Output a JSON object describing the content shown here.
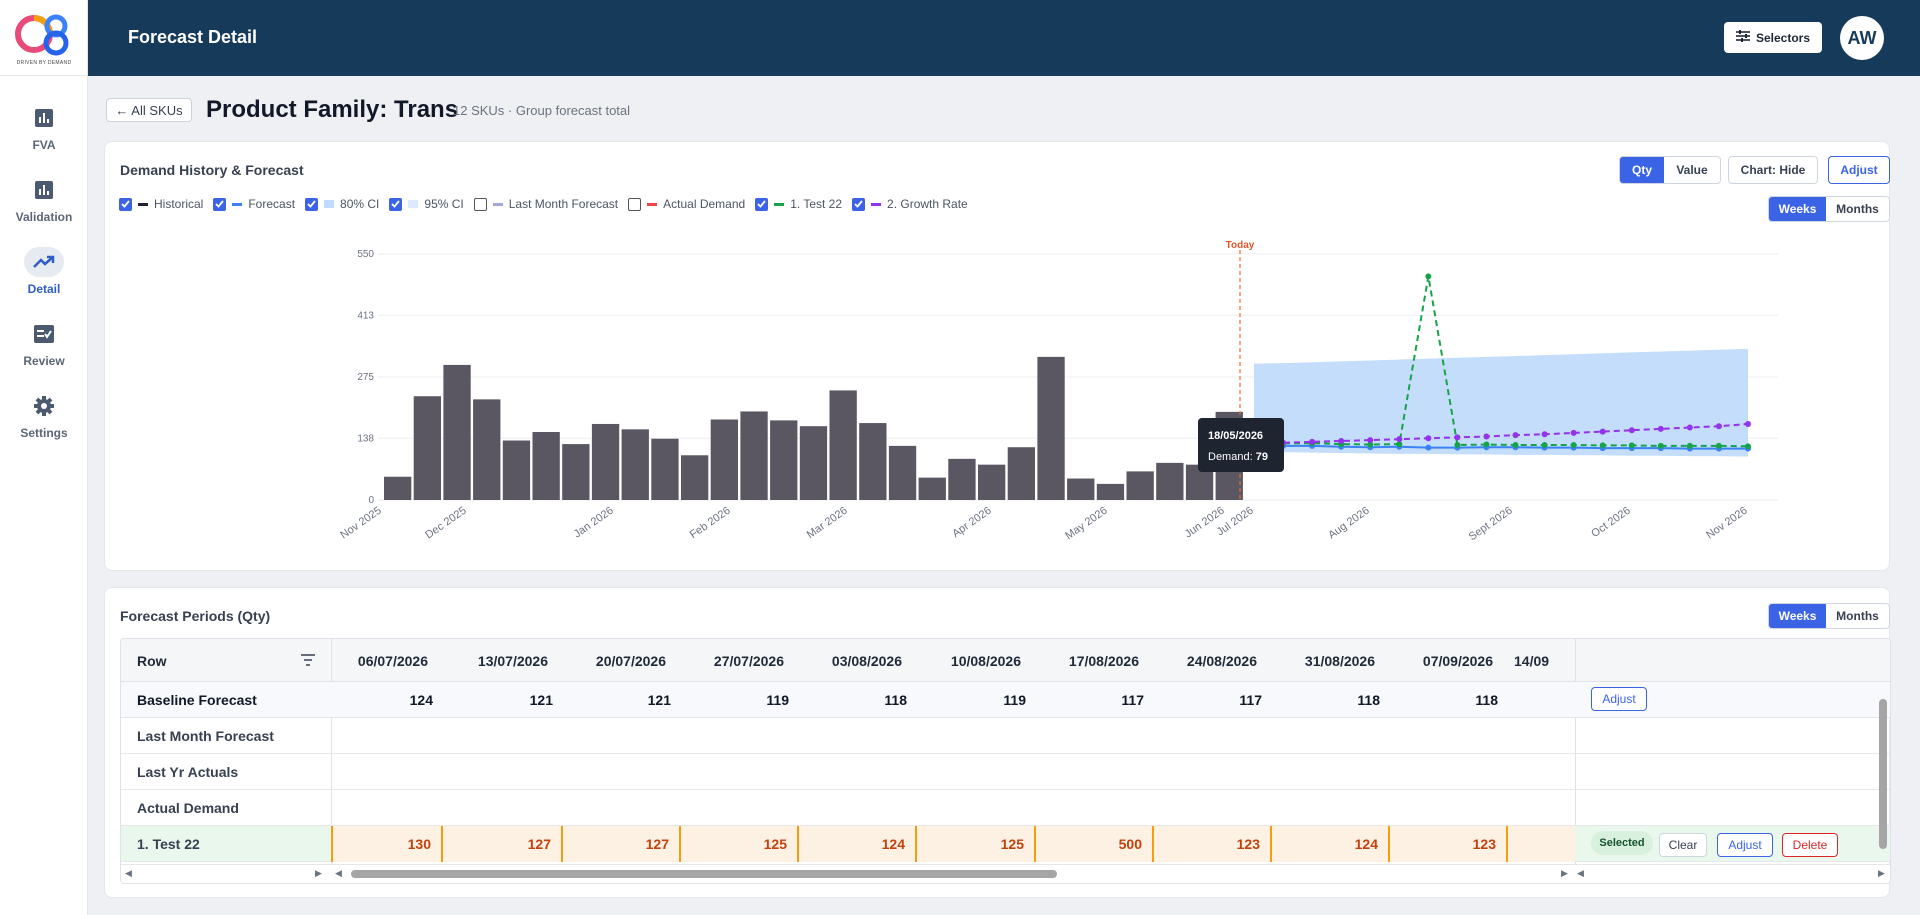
{
  "app": {
    "logo_text": "DRIVEN BY DEMAND",
    "page_title": "Forecast Detail",
    "selectors_label": "Selectors",
    "avatar": "AW"
  },
  "nav": [
    {
      "label": "FVA"
    },
    {
      "label": "Validation"
    },
    {
      "label": "Detail"
    },
    {
      "label": "Review"
    },
    {
      "label": "Settings"
    }
  ],
  "header": {
    "back_label": "← All SKUs",
    "family_title": "Product Family: Trans",
    "family_sub": "12 SKUs · Group forecast total"
  },
  "chart_card": {
    "title": "Demand History & Forecast",
    "qty": "Qty",
    "value": "Value",
    "chart_hide": "Chart: Hide",
    "adjust": "Adjust",
    "weeks": "Weeks",
    "months": "Months",
    "legend": [
      {
        "label": "Historical",
        "checked": true,
        "color": "#1f2430"
      },
      {
        "label": "Forecast",
        "checked": true,
        "color": "#3b82f6"
      },
      {
        "label": "80% CI",
        "checked": true,
        "color": "#bfdbfe"
      },
      {
        "label": "95% CI",
        "checked": true,
        "color": "#dbeafe"
      },
      {
        "label": "Last Month Forecast",
        "checked": false,
        "color": "#a5a8d6"
      },
      {
        "label": "Actual Demand",
        "checked": false,
        "color": "#ef4444"
      },
      {
        "label": "1. Test 22",
        "checked": true,
        "color": "#16a34a"
      },
      {
        "label": "2. Growth Rate",
        "checked": true,
        "color": "#9333ea"
      }
    ],
    "tooltip": {
      "date": "18/05/2026",
      "label": "Demand:",
      "value": "79"
    },
    "today_label": "Today"
  },
  "chart_data": {
    "type": "bar",
    "ylim": [
      0,
      550
    ],
    "yticks": [
      "0",
      "138",
      "275",
      "413",
      "550"
    ],
    "x_labels": [
      "Nov 2025",
      "Dec 2025",
      "Jan 2026",
      "Feb 2026",
      "Mar 2026",
      "Apr 2026",
      "May 2026",
      "Jun 2026",
      "Jul 2026",
      "Aug 2026",
      "Sept 2026",
      "Oct 2026",
      "Nov 2026"
    ],
    "historical": [
      52,
      232,
      302,
      225,
      133,
      152,
      125,
      170,
      158,
      137,
      100,
      180,
      198,
      178,
      165,
      245,
      172,
      121,
      50,
      92,
      79,
      118,
      320,
      48,
      36,
      64,
      83,
      79,
      197
    ],
    "forecast_weeks": 18,
    "ci95_upper": [
      305,
      306,
      308,
      310,
      312,
      314,
      316,
      318,
      320,
      322,
      324,
      326,
      328,
      330,
      332,
      334,
      336,
      338
    ],
    "ci95_lower": [
      108,
      107,
      106,
      105,
      104,
      103,
      103,
      102,
      102,
      101,
      101,
      100,
      100,
      99,
      99,
      98,
      98,
      97
    ],
    "forecast": [
      124,
      121,
      121,
      119,
      118,
      119,
      117,
      117,
      118,
      118,
      117,
      117,
      116,
      116,
      116,
      115,
      115,
      115
    ],
    "test22": [
      130,
      127,
      127,
      125,
      124,
      125,
      500,
      123,
      124,
      123,
      123,
      123,
      122,
      122,
      121,
      121,
      121,
      120
    ],
    "growth_rate": [
      126,
      128,
      130,
      132,
      134,
      136,
      138,
      140,
      142,
      145,
      147,
      150,
      153,
      156,
      159,
      162,
      165,
      170
    ]
  },
  "table_card": {
    "title": "Forecast Periods (Qty)",
    "weeks": "Weeks",
    "months": "Months",
    "row_header": "Row",
    "dates": [
      "06/07/2026",
      "13/07/2026",
      "20/07/2026",
      "27/07/2026",
      "03/08/2026",
      "10/08/2026",
      "17/08/2026",
      "24/08/2026",
      "31/08/2026",
      "07/09/2026",
      "14/09"
    ],
    "rows": [
      {
        "label": "Baseline Forecast",
        "values": [
          "124",
          "121",
          "121",
          "119",
          "118",
          "119",
          "117",
          "117",
          "118",
          "118"
        ]
      },
      {
        "label": "Last Month Forecast",
        "values": []
      },
      {
        "label": "Last Yr Actuals",
        "values": []
      },
      {
        "label": "Actual Demand",
        "values": []
      },
      {
        "label": "1. Test 22",
        "values": [
          "130",
          "127",
          "127",
          "125",
          "124",
          "125",
          "500",
          "123",
          "124",
          "123"
        ]
      }
    ],
    "actions": {
      "adjust": "Adjust",
      "selected": "Selected",
      "clear": "Clear",
      "delete": "Delete"
    }
  }
}
